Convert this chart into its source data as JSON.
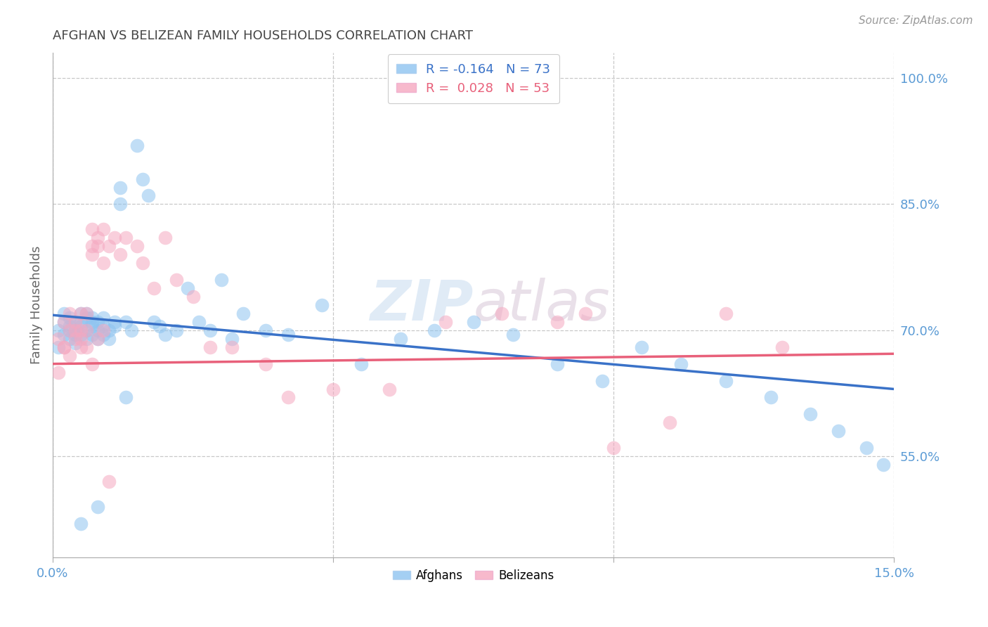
{
  "title": "AFGHAN VS BELIZEAN FAMILY HOUSEHOLDS CORRELATION CHART",
  "source": "Source: ZipAtlas.com",
  "ylabel": "Family Households",
  "xmin": 0.0,
  "xmax": 0.15,
  "ymin": 0.43,
  "ymax": 1.03,
  "watermark": "ZIPatlas",
  "afghan_color": "#8EC4F0",
  "belizean_color": "#F5A8C0",
  "afghan_line_color": "#3A72C8",
  "belizean_line_color": "#E8607A",
  "background_color": "#FFFFFF",
  "axis_label_color": "#5B9BD5",
  "title_color": "#444444",
  "source_color": "#999999",
  "ytick_vals": [
    0.55,
    0.7,
    0.85,
    1.0
  ],
  "xtick_vals": [
    0.0,
    0.05,
    0.1,
    0.15
  ],
  "legend_entries": [
    "R = -0.164   N = 73",
    "R =  0.028   N = 53"
  ],
  "afghan_scatter_x": [
    0.001,
    0.001,
    0.002,
    0.002,
    0.002,
    0.003,
    0.003,
    0.003,
    0.003,
    0.004,
    0.004,
    0.004,
    0.004,
    0.005,
    0.005,
    0.005,
    0.005,
    0.006,
    0.006,
    0.006,
    0.006,
    0.007,
    0.007,
    0.007,
    0.007,
    0.008,
    0.008,
    0.008,
    0.009,
    0.009,
    0.009,
    0.01,
    0.01,
    0.011,
    0.011,
    0.012,
    0.012,
    0.013,
    0.014,
    0.015,
    0.016,
    0.017,
    0.018,
    0.019,
    0.02,
    0.022,
    0.024,
    0.026,
    0.028,
    0.03,
    0.032,
    0.034,
    0.038,
    0.042,
    0.048,
    0.055,
    0.062,
    0.068,
    0.075,
    0.082,
    0.09,
    0.098,
    0.105,
    0.112,
    0.12,
    0.128,
    0.135,
    0.14,
    0.145,
    0.148,
    0.005,
    0.008,
    0.013
  ],
  "afghan_scatter_y": [
    0.7,
    0.68,
    0.71,
    0.695,
    0.72,
    0.7,
    0.69,
    0.715,
    0.705,
    0.695,
    0.71,
    0.7,
    0.685,
    0.72,
    0.705,
    0.695,
    0.71,
    0.715,
    0.7,
    0.69,
    0.72,
    0.71,
    0.695,
    0.705,
    0.715,
    0.7,
    0.69,
    0.71,
    0.705,
    0.695,
    0.715,
    0.7,
    0.69,
    0.71,
    0.705,
    0.85,
    0.87,
    0.71,
    0.7,
    0.92,
    0.88,
    0.86,
    0.71,
    0.705,
    0.695,
    0.7,
    0.75,
    0.71,
    0.7,
    0.76,
    0.69,
    0.72,
    0.7,
    0.695,
    0.73,
    0.66,
    0.69,
    0.7,
    0.71,
    0.695,
    0.66,
    0.64,
    0.68,
    0.66,
    0.64,
    0.62,
    0.6,
    0.58,
    0.56,
    0.54,
    0.47,
    0.49,
    0.62
  ],
  "belizean_scatter_x": [
    0.001,
    0.001,
    0.002,
    0.002,
    0.003,
    0.003,
    0.004,
    0.004,
    0.005,
    0.005,
    0.005,
    0.006,
    0.006,
    0.007,
    0.007,
    0.007,
    0.008,
    0.008,
    0.009,
    0.009,
    0.01,
    0.011,
    0.012,
    0.013,
    0.015,
    0.016,
    0.018,
    0.02,
    0.022,
    0.025,
    0.028,
    0.032,
    0.038,
    0.042,
    0.05,
    0.06,
    0.07,
    0.08,
    0.09,
    0.095,
    0.1,
    0.11,
    0.12,
    0.13,
    0.002,
    0.003,
    0.004,
    0.005,
    0.006,
    0.007,
    0.008,
    0.009,
    0.01
  ],
  "belizean_scatter_y": [
    0.69,
    0.65,
    0.71,
    0.68,
    0.72,
    0.7,
    0.71,
    0.69,
    0.72,
    0.7,
    0.68,
    0.72,
    0.7,
    0.82,
    0.8,
    0.79,
    0.81,
    0.8,
    0.82,
    0.78,
    0.8,
    0.81,
    0.79,
    0.81,
    0.8,
    0.78,
    0.75,
    0.81,
    0.76,
    0.74,
    0.68,
    0.68,
    0.66,
    0.62,
    0.63,
    0.63,
    0.71,
    0.72,
    0.71,
    0.72,
    0.56,
    0.59,
    0.72,
    0.68,
    0.68,
    0.67,
    0.7,
    0.69,
    0.68,
    0.66,
    0.69,
    0.7,
    0.52
  ],
  "afghan_trendline_x": [
    0.0,
    0.15
  ],
  "afghan_trendline_y": [
    0.718,
    0.63
  ],
  "belizean_trendline_x": [
    0.0,
    0.15
  ],
  "belizean_trendline_y": [
    0.66,
    0.672
  ]
}
